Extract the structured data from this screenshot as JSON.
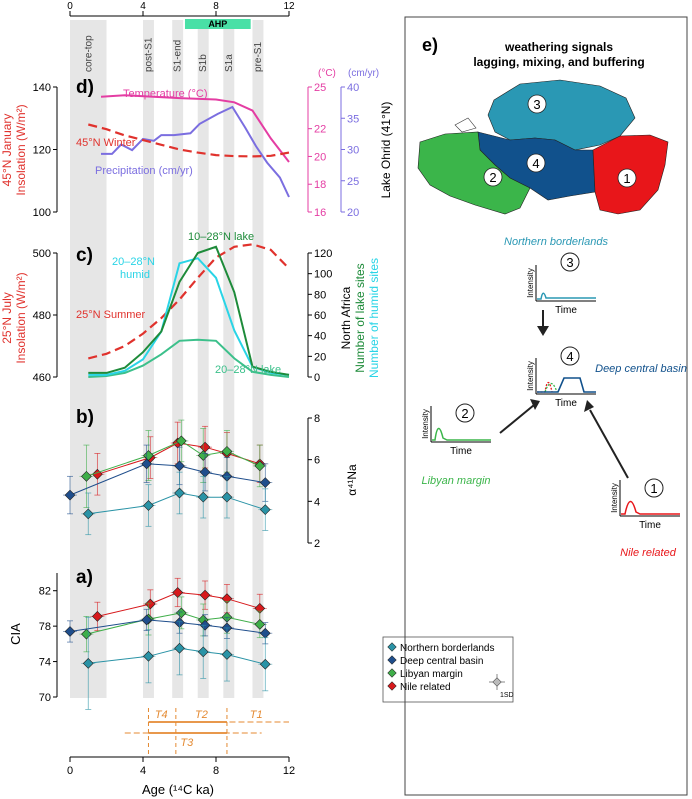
{
  "colors": {
    "northern": "#2a93a6",
    "deep": "#1f4e8c",
    "libyan": "#3fae49",
    "nile": "#d7191c",
    "insolation": "#e0322d",
    "temperature": "#e43da3",
    "precip": "#7b6ee0",
    "lake": "#1e8b3a",
    "humid": "#29d4e6",
    "lake_2028": "#3cc08b",
    "ahp": "#49e0a6",
    "tlines": "#e48a32",
    "band": "#e6e6e6",
    "region1": "#e8161a",
    "region2": "#3bb54a",
    "region3": "#2a98b4",
    "region4": "#11518c"
  },
  "chart_data": [
    {
      "panel": "d",
      "type": "line",
      "title": "",
      "xlabel": "",
      "xlim": [
        0,
        12
      ],
      "left_axis": {
        "label": [
          "45°N January",
          "Insolation (W/m²)"
        ],
        "ylim": [
          100,
          140
        ],
        "ticks": [
          100,
          120,
          140
        ]
      },
      "right_axis_1": {
        "unit": "(°C)",
        "ylim": [
          16,
          25
        ],
        "ticks": [
          16,
          18,
          20,
          22,
          25
        ]
      },
      "right_axis_2": {
        "unit": "(cm/yr)",
        "label": "Lake Ohrid (41°N)",
        "ylim": [
          20,
          40
        ],
        "ticks": [
          20,
          25,
          30,
          35,
          40
        ]
      },
      "series": [
        {
          "name": "Temperature (°C)",
          "axis": "right1",
          "x": [
            1.7,
            3,
            6,
            8,
            9,
            10,
            11,
            12
          ],
          "values": [
            24.3,
            24.4,
            24.2,
            24.1,
            23.9,
            23.3,
            21.3,
            19.6
          ]
        },
        {
          "name": "Precipitation (cm/yr)",
          "axis": "right2",
          "x": [
            1.7,
            2.3,
            2.8,
            3.4,
            4,
            4.6,
            5,
            5.7,
            6.6,
            7.1,
            8.1,
            8.9,
            9.6,
            10.2,
            10.8,
            11.5,
            12
          ],
          "values": [
            29.3,
            29.3,
            30.8,
            29.9,
            31.7,
            31.4,
            32.3,
            32.3,
            32.6,
            34.1,
            35.7,
            36.8,
            33.5,
            30.5,
            27.9,
            25.5,
            22.4
          ]
        },
        {
          "name": "45°N Winter",
          "axis": "left",
          "style": "dashed",
          "x": [
            1,
            2,
            3,
            4,
            5,
            6,
            7,
            8,
            9,
            10,
            11,
            12
          ],
          "values": [
            128,
            126.5,
            124.5,
            123,
            121.5,
            120,
            119,
            118.2,
            117.9,
            117.8,
            118,
            119
          ]
        }
      ]
    },
    {
      "panel": "c",
      "type": "line",
      "title": "",
      "left_axis": {
        "label": [
          "25°N July",
          "Insolation (W/m²)"
        ],
        "ylim": [
          460,
          500
        ],
        "ticks": [
          460,
          480,
          500
        ]
      },
      "right_axis": {
        "label": [
          "North Africa",
          "Number of lake sites",
          "Number of humid sites"
        ],
        "ylim": [
          0,
          120
        ],
        "ticks": [
          0,
          20,
          40,
          60,
          80,
          100,
          120
        ]
      },
      "series": [
        {
          "name": "25°N Summer",
          "axis": "left",
          "style": "dashed",
          "x": [
            1,
            2,
            3,
            4,
            5,
            6,
            7,
            8,
            9,
            10,
            11,
            12
          ],
          "values": [
            466,
            467.5,
            470,
            474,
            479,
            485,
            492,
            498.5,
            502,
            502.8,
            501,
            495
          ]
        },
        {
          "name": "10–28°N lake",
          "axis": "right",
          "x": [
            1,
            2,
            3,
            4,
            5,
            6,
            7,
            8,
            9,
            10,
            11,
            12
          ],
          "values": [
            4,
            4,
            9,
            24,
            44,
            92,
            120,
            126,
            82,
            10,
            5,
            2
          ]
        },
        {
          "name": "20–28°N humid",
          "axis": "right",
          "x": [
            1,
            2,
            3,
            4,
            5,
            6,
            7,
            8,
            9,
            10,
            11,
            12
          ],
          "values": [
            2,
            2,
            6,
            17,
            44,
            110,
            115,
            96,
            45,
            10,
            4,
            2
          ]
        },
        {
          "name": "20–28°N lake",
          "axis": "right",
          "x": [
            1,
            2,
            3,
            4,
            5,
            6,
            7,
            8,
            9,
            10,
            11,
            12
          ],
          "values": [
            0,
            1,
            4,
            11,
            22,
            35,
            36,
            35,
            18,
            5,
            2,
            0
          ]
        }
      ]
    },
    {
      "panel": "b",
      "type": "scatter",
      "title": "",
      "ylabel": "α⁴¹Na",
      "ylim": [
        2,
        8
      ],
      "yticks": [
        2,
        4,
        6,
        8
      ],
      "series": [
        {
          "name": "Nile related",
          "x": [
            1.5,
            4.4,
            5.9,
            7.4,
            8.6,
            10.4
          ],
          "values": [
            5.3,
            6.1,
            6.8,
            6.6,
            6.3,
            5.8
          ],
          "err": [
            1.0,
            1.0,
            1.0,
            1.0,
            1.0,
            0.9
          ]
        },
        {
          "name": "Libyan margin",
          "x": [
            0.9,
            4.3,
            6.1,
            7.3,
            8.6,
            10.4
          ],
          "values": [
            5.2,
            6.2,
            6.9,
            6.2,
            6.4,
            5.7
          ],
          "err": [
            1.5,
            1.2,
            1.0,
            1.3,
            1.0,
            1.0
          ]
        },
        {
          "name": "Deep central basin",
          "x": [
            0,
            4.2,
            6.0,
            7.4,
            8.6,
            10.7
          ],
          "values": [
            4.3,
            5.8,
            5.7,
            5.4,
            5.2,
            4.9
          ],
          "err": [
            0.9,
            0.9,
            0.9,
            0.9,
            0.9,
            0.9
          ]
        },
        {
          "name": "Northern borderlands",
          "x": [
            1,
            4.3,
            6.0,
            7.3,
            8.6,
            10.7
          ],
          "values": [
            3.4,
            3.8,
            4.4,
            4.2,
            4.2,
            3.6
          ],
          "err": [
            1.0,
            1.0,
            1.0,
            1.0,
            1.0,
            1.0
          ]
        }
      ]
    },
    {
      "panel": "a",
      "type": "scatter",
      "title": "",
      "ylabel": "CIA",
      "ylim": [
        70,
        84
      ],
      "yticks": [
        70,
        74,
        78,
        82
      ],
      "xlabel": "Age (¹⁴C ka)",
      "xticks": [
        0,
        4,
        8,
        12
      ],
      "series": [
        {
          "name": "Nile related",
          "x": [
            1.5,
            4.4,
            5.9,
            7.4,
            8.6,
            10.4
          ],
          "values": [
            79.1,
            80.5,
            81.8,
            81.5,
            81.1,
            80.0
          ],
          "err": [
            1.6,
            1.6,
            1.6,
            1.6,
            1.6,
            1.6
          ]
        },
        {
          "name": "Libyan margin",
          "x": [
            0.9,
            4.3,
            6.1,
            7.3,
            8.6,
            10.4
          ],
          "values": [
            77.1,
            78.8,
            79.5,
            78.7,
            79.0,
            78.2
          ],
          "err": [
            2.0,
            1.8,
            1.8,
            1.8,
            1.8,
            1.5
          ]
        },
        {
          "name": "Deep central basin",
          "x": [
            0,
            4.2,
            6.0,
            7.4,
            8.6,
            10.7
          ],
          "values": [
            77.4,
            78.7,
            78.4,
            78.1,
            77.8,
            77.2
          ],
          "err": [
            1.2,
            1.2,
            1.2,
            1.2,
            1.2,
            1.2
          ]
        },
        {
          "name": "Northern borderlands",
          "x": [
            1,
            4.3,
            6.0,
            7.3,
            8.6,
            10.7
          ],
          "values": [
            73.8,
            74.6,
            75.5,
            75.1,
            74.8,
            73.7
          ],
          "err": [
            5.2,
            3.0,
            3.0,
            3.0,
            3.0,
            3.0
          ]
        }
      ]
    }
  ],
  "top_axis": {
    "ticks": [
      "0",
      "4",
      "8",
      "12"
    ],
    "ahp_label": "AHP"
  },
  "bands": [
    {
      "label": "core-top",
      "x0": 0,
      "x1": 2
    },
    {
      "label": "post-S1",
      "x0": 4,
      "x1": 4.6
    },
    {
      "label": "S1-end",
      "x0": 5.6,
      "x1": 6.2
    },
    {
      "label": "S1b",
      "x0": 7,
      "x1": 7.6
    },
    {
      "label": "S1a",
      "x0": 8.4,
      "x1": 9
    },
    {
      "label": "pre-S1",
      "x0": 10,
      "x1": 10.6
    }
  ],
  "panel_letters": {
    "a": "a)",
    "b": "b)",
    "c": "c)",
    "d": "d)",
    "e": "e)"
  },
  "labels": {
    "temperature": "Temperature (°C)",
    "precip": "Precipitation (cm/yr)",
    "winter": "45°N Winter",
    "summer": "25°N Summer",
    "lake_1028": "10–28°N lake",
    "humid_2028": "20–28°N",
    "humid_2028_b": "humid",
    "lake_2028": "20–28°N lake",
    "d_left": [
      "45°N January",
      "Insolation (W/m²)"
    ],
    "c_left": [
      "25°N July",
      "Insolation (W/m²)"
    ],
    "c_right": [
      "North Africa",
      "Number of lake sites",
      "Number of humid sites"
    ],
    "deg_unit": "(°C)",
    "cm_unit": "(cm/yr)",
    "ohrid": "Lake Ohrid (41°N)",
    "b_label": "α⁴¹Na",
    "a_label": "CIA",
    "x_label": "Age (¹⁴C ka)"
  },
  "legend": {
    "items": [
      "Northern borderlands",
      "Deep central basin",
      "Libyan margin",
      "Nile related"
    ],
    "sd": "1SD"
  },
  "tlabels": [
    "T4",
    "T2",
    "T1",
    "T3"
  ],
  "panel_e": {
    "title_1": "weathering signals",
    "title_2": "lagging, mixing, and buffering",
    "regions": [
      "1",
      "2",
      "3",
      "4"
    ],
    "boxes": [
      {
        "num": "3",
        "caption": "Northern borderlands",
        "ylabel": "Intensity",
        "xlabel": "Time"
      },
      {
        "num": "4",
        "caption": "Deep central basin",
        "ylabel": "Intensity",
        "xlabel": "Time"
      },
      {
        "num": "2",
        "caption": "Libyan margin",
        "ylabel": "Intensity",
        "xlabel": "Time"
      },
      {
        "num": "1",
        "caption": "Nile related",
        "ylabel": "Intensity",
        "xlabel": "Time"
      }
    ]
  }
}
